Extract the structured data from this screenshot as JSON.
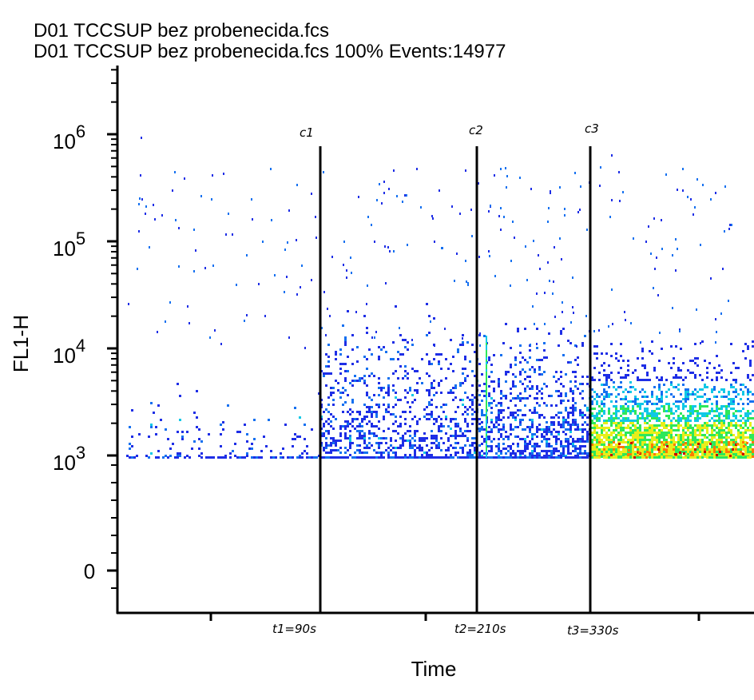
{
  "chart_data": {
    "type": "scatter",
    "title_lines": [
      "D01 TCCSUP bez probenecida.fcs",
      "D01 TCCSUP bez probenecida.fcs  100% Events:14977"
    ],
    "xlabel": "Time",
    "ylabel": "FL1-H",
    "y_scale": "log",
    "y_ticks": [
      {
        "value": 0,
        "base": "0",
        "exp": ""
      },
      {
        "value": 1000,
        "base": "10",
        "exp": "3"
      },
      {
        "value": 10000,
        "base": "10",
        "exp": "4"
      },
      {
        "value": 100000,
        "base": "10",
        "exp": "5"
      },
      {
        "value": 1000000,
        "base": "10",
        "exp": "6"
      }
    ],
    "grid": false,
    "events": 14977,
    "density_colors": [
      "#1e2ee6",
      "#1470f0",
      "#10c8e6",
      "#2ee85a",
      "#e8ee1a",
      "#ff7a00",
      "#c80000"
    ],
    "marker_color": "#000000",
    "markers": [
      {
        "name": "c1",
        "label": "t1=90s",
        "time_s": 90
      },
      {
        "name": "c2",
        "label": "t2=210s",
        "time_s": 210
      },
      {
        "name": "c3",
        "label": "t3=330s",
        "time_s": 330
      }
    ]
  }
}
